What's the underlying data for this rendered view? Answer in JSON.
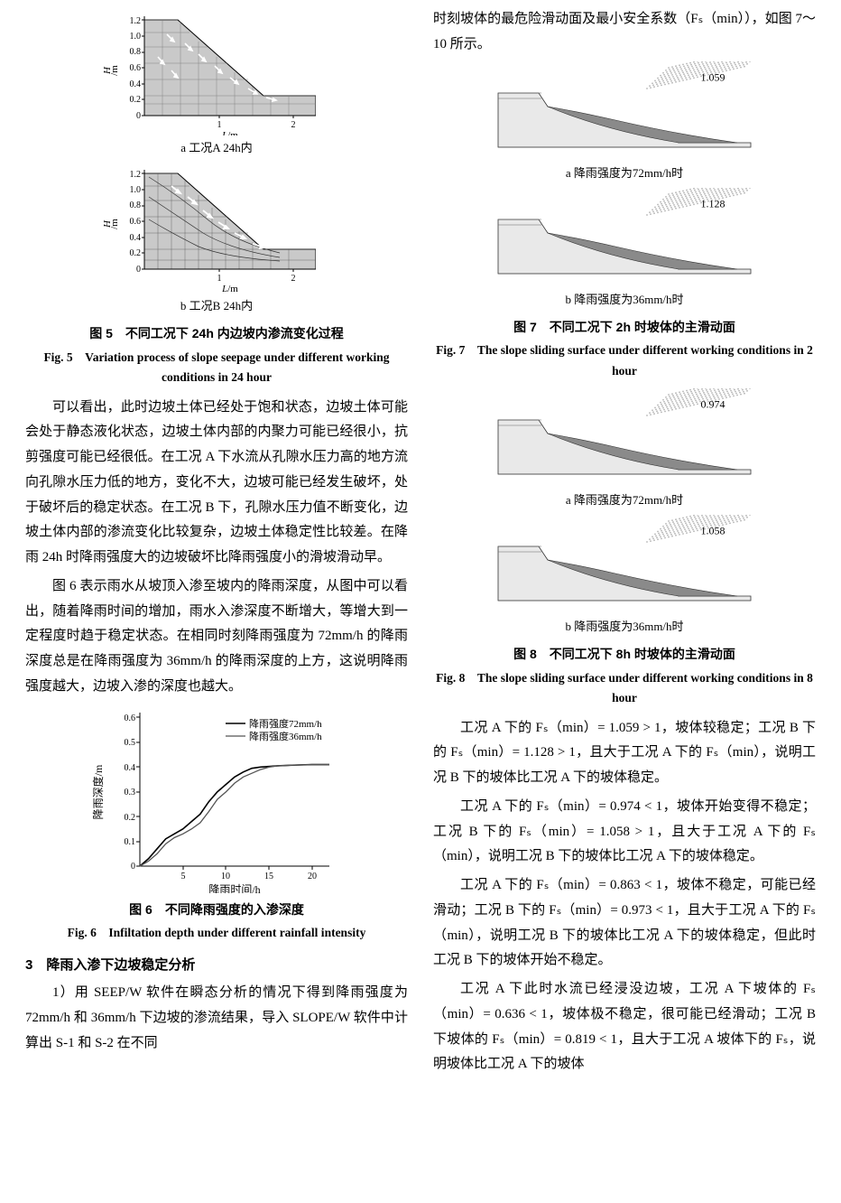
{
  "fig5": {
    "charts": {
      "y_ticks": [
        0,
        0.2,
        0.4,
        0.6,
        0.8,
        1.0,
        1.2
      ],
      "x_ticks": [
        1,
        2
      ],
      "xlim": [
        0,
        2.3
      ],
      "ylim": [
        0,
        1.25
      ],
      "ylabel": "H/m",
      "xlabel": "L/m",
      "slope_poly": [
        [
          0,
          1.2
        ],
        [
          0.45,
          1.2
        ],
        [
          1.6,
          0.25
        ],
        [
          2.3,
          0.25
        ],
        [
          2.3,
          0
        ],
        [
          0,
          0
        ]
      ],
      "fill": "#c9c9c9",
      "border": "#000000",
      "vector_color": "#ffffff"
    },
    "sub_a": "a 工况A 24h内",
    "sub_b": "b 工况B 24h内",
    "cap_cn": "图 5　不同工况下 24h 内边坡内渗流变化过程",
    "cap_en": "Fig. 5　Variation process of slope seepage under different working conditions in 24 hour"
  },
  "para1": "可以看出，此时边坡土体已经处于饱和状态，边坡土体可能会处于静态液化状态，边坡土体内部的内聚力可能已经很小，抗剪强度可能已经很低。在工况 A 下水流从孔隙水压力高的地方流向孔隙水压力低的地方，变化不大，边坡可能已经发生破坏，处于破坏后的稳定状态。在工况 B 下，孔隙水压力值不断变化，边坡土体内部的渗流变化比较复杂，边坡土体稳定性比较差。在降雨 24h 时降雨强度大的边坡破坏比降雨强度小的滑坡滑动早。",
  "para2": "图 6 表示雨水从坡顶入渗至坡内的降雨深度，从图中可以看出，随着降雨时间的增加，雨水入渗深度不断增大，等增大到一定程度时趋于稳定状态。在相同时刻降雨强度为 72mm/h 的降雨深度总是在降雨强度为 36mm/h 的降雨深度的上方，这说明降雨强度越大，边坡入渗的深度也越大。",
  "fig6": {
    "xlabel": "降雨时间/h",
    "ylabel": "降雨深度/m",
    "x_ticks": [
      5,
      10,
      15,
      20
    ],
    "y_ticks": [
      0,
      0.1,
      0.2,
      0.3,
      0.4,
      0.5,
      0.6
    ],
    "xlim": [
      0,
      22
    ],
    "ylim": [
      0,
      0.62
    ],
    "legend": [
      "降雨强度72mm/h",
      "降雨强度36mm/h"
    ],
    "series72": [
      [
        0,
        0
      ],
      [
        1,
        0.03
      ],
      [
        2,
        0.07
      ],
      [
        3,
        0.11
      ],
      [
        4,
        0.13
      ],
      [
        5,
        0.15
      ],
      [
        6,
        0.18
      ],
      [
        7,
        0.21
      ],
      [
        8,
        0.26
      ],
      [
        9,
        0.3
      ],
      [
        10,
        0.33
      ],
      [
        11,
        0.36
      ],
      [
        12,
        0.38
      ],
      [
        13,
        0.395
      ],
      [
        14,
        0.4
      ],
      [
        16,
        0.405
      ],
      [
        18,
        0.408
      ],
      [
        20,
        0.41
      ],
      [
        22,
        0.41
      ]
    ],
    "series36": [
      [
        0,
        0
      ],
      [
        1,
        0.02
      ],
      [
        2,
        0.05
      ],
      [
        3,
        0.09
      ],
      [
        4,
        0.115
      ],
      [
        5,
        0.13
      ],
      [
        6,
        0.15
      ],
      [
        7,
        0.175
      ],
      [
        8,
        0.22
      ],
      [
        9,
        0.27
      ],
      [
        10,
        0.3
      ],
      [
        11,
        0.335
      ],
      [
        12,
        0.36
      ],
      [
        13,
        0.375
      ],
      [
        14,
        0.39
      ],
      [
        15,
        0.4
      ],
      [
        16,
        0.405
      ],
      [
        18,
        0.408
      ],
      [
        20,
        0.41
      ],
      [
        22,
        0.41
      ]
    ],
    "color72": "#000000",
    "color36": "#555555",
    "cap_cn": "图 6　不同降雨强度的入渗深度",
    "cap_en": "Fig. 6　Infiltation depth under different rainfall intensity"
  },
  "sec3": "3　降雨入渗下边坡稳定分析",
  "para3": "1）用 SEEP/W 软件在瞬态分析的情况下得到降雨强度为 72mm/h 和 36mm/h 下边坡的渗流结果，导入 SLOPE/W 软件中计算出 S-1 和 S-2 在不同",
  "para_top_r": "时刻坡体的最危险滑动面及最小安全系数（Fₛ（min）），如图 7～10 所示。",
  "fig7": {
    "fs_a": "1.059",
    "fs_b": "1.128",
    "sub_a": "a 降雨强度为72mm/h时",
    "sub_b": "b 降雨强度为36mm/h时",
    "cap_cn": "图 7　不同工况下 2h 时坡体的主滑动面",
    "cap_en": "Fig. 7　The slope sliding surface under different working conditions in 2 hour"
  },
  "fig8": {
    "fs_a": "0.974",
    "fs_b": "1.058",
    "sub_a": "a 降雨强度为72mm/h时",
    "sub_b": "b 降雨强度为36mm/h时",
    "cap_cn": "图 8　不同工况下 8h 时坡体的主滑动面",
    "cap_en": "Fig. 8　The slope sliding surface under different working conditions in 8 hour"
  },
  "para_r1": "工况 A 下的 Fₛ（min）= 1.059 > 1，坡体较稳定；工况 B 下的 Fₛ（min）= 1.128 > 1，且大于工况 A 下的 Fₛ（min），说明工况 B 下的坡体比工况 A 下的坡体稳定。",
  "para_r2": "工况 A 下的 Fₛ（min）= 0.974 < 1，坡体开始变得不稳定；工况 B 下的 Fₛ（min）= 1.058 > 1，且大于工况 A 下的 Fₛ（min），说明工况 B 下的坡体比工况 A 下的坡体稳定。",
  "para_r3": "工况 A 下的 Fₛ（min）= 0.863 < 1，坡体不稳定，可能已经滑动；工况 B 下的 Fₛ（min）= 0.973 < 1，且大于工况 A 下的 Fₛ（min），说明工况 B 下的坡体比工况 A 下的坡体稳定，但此时工况 B 下的坡体开始不稳定。",
  "para_r4": "工况 A 下此时水流已经浸没边坡，工况 A 下坡体的 Fₛ（min）= 0.636 < 1，坡体极不稳定，很可能已经滑动；工况 B 下坡体的 Fₛ（min）= 0.819 < 1，且大于工况 A 坡体下的 Fₛ，说明坡体比工况 A 下的坡体",
  "slip_fig": {
    "outline": [
      [
        0,
        70
      ],
      [
        45,
        70
      ],
      [
        55,
        55
      ],
      [
        200,
        15
      ],
      [
        280,
        15
      ],
      [
        280,
        10
      ],
      [
        0,
        10
      ]
    ],
    "slip_mass": [
      [
        55,
        55
      ],
      [
        200,
        15
      ],
      [
        265,
        15
      ],
      [
        200,
        22
      ],
      [
        120,
        40
      ],
      [
        70,
        54
      ]
    ],
    "ground_y": 10,
    "top_lines": [
      70,
      63
    ],
    "hatch_box": [
      [
        165,
        75
      ],
      [
        275,
        98
      ]
    ],
    "mass_fill": "#8a8a8a",
    "body_fill": "#e9e9e9",
    "dot_fill": "#b5b5b5"
  }
}
